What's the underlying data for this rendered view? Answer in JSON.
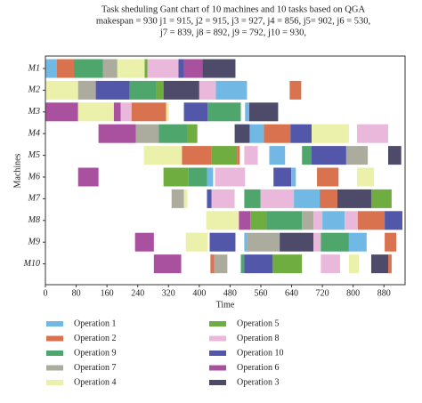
{
  "chart_data": {
    "type": "gantt",
    "title": [
      "Task sheduling Gant chart of 10 machines and 10 tasks based on QGA",
      "makespan = 930 j1 = 915, j2 = 915, j3 = 927, j4 = 856, j5= 902, j6 = 530,",
      "j7 = 839, j8 = 892, j9 = 792, j10 = 930,"
    ],
    "x_label": "Time",
    "y_label": "Machines",
    "xlim": [
      0,
      935
    ],
    "xticks": [
      0,
      80,
      160,
      240,
      320,
      400,
      480,
      560,
      640,
      720,
      800,
      880
    ],
    "operations": [
      {
        "name": "Operation 1",
        "color": "#72b8e4"
      },
      {
        "name": "Operation 2",
        "color": "#d9734f"
      },
      {
        "name": "Operation 9",
        "color": "#4ea66c"
      },
      {
        "name": "Operation 7",
        "color": "#abab9e"
      },
      {
        "name": "Operation 4",
        "color": "#ebf1ab"
      },
      {
        "name": "Operation 5",
        "color": "#70ad40"
      },
      {
        "name": "Operation 8",
        "color": "#e9b8da"
      },
      {
        "name": "Operation 10",
        "color": "#5257a9"
      },
      {
        "name": "Operation 6",
        "color": "#a9519f"
      },
      {
        "name": "Operation 3",
        "color": "#4e4b6a"
      }
    ],
    "machines": [
      {
        "name": "M1",
        "tasks": [
          [
            0,
            0,
            30
          ],
          [
            1,
            30,
            74
          ],
          [
            2,
            74,
            150
          ],
          [
            3,
            150,
            187
          ],
          [
            4,
            187,
            258
          ],
          [
            5,
            258,
            265
          ],
          [
            6,
            265,
            346
          ],
          [
            7,
            346,
            360
          ],
          [
            8,
            360,
            408
          ],
          [
            9,
            408,
            494
          ]
        ]
      },
      {
        "name": "M2",
        "tasks": [
          [
            4,
            0,
            85
          ],
          [
            3,
            85,
            131
          ],
          [
            7,
            131,
            219
          ],
          [
            2,
            219,
            288
          ],
          [
            5,
            288,
            307
          ],
          [
            9,
            307,
            400
          ],
          [
            6,
            400,
            443
          ],
          [
            0,
            443,
            524
          ],
          [
            1,
            635,
            665
          ]
        ]
      },
      {
        "name": "M3",
        "tasks": [
          [
            8,
            0,
            85
          ],
          [
            4,
            85,
            178
          ],
          [
            8,
            178,
            196
          ],
          [
            6,
            196,
            224
          ],
          [
            1,
            224,
            314
          ],
          [
            4,
            314,
            321
          ],
          [
            7,
            360,
            422
          ],
          [
            2,
            422,
            508
          ],
          [
            0,
            519,
            530
          ],
          [
            9,
            530,
            605
          ]
        ]
      },
      {
        "name": "M4",
        "tasks": [
          [
            8,
            138,
            235
          ],
          [
            3,
            235,
            295
          ],
          [
            2,
            295,
            369
          ],
          [
            5,
            369,
            395
          ],
          [
            9,
            492,
            531
          ],
          [
            0,
            531,
            568
          ],
          [
            1,
            568,
            637
          ],
          [
            7,
            637,
            692
          ],
          [
            4,
            692,
            789
          ],
          [
            6,
            810,
            891
          ]
        ]
      },
      {
        "name": "M5",
        "tasks": [
          [
            4,
            256,
            355
          ],
          [
            1,
            355,
            432
          ],
          [
            5,
            432,
            498
          ],
          [
            1,
            498,
            505
          ],
          [
            6,
            517,
            552
          ],
          [
            0,
            582,
            623
          ],
          [
            2,
            667,
            692
          ],
          [
            7,
            692,
            782
          ],
          [
            3,
            782,
            838
          ],
          [
            9,
            891,
            925
          ]
        ]
      },
      {
        "name": "M6",
        "tasks": [
          [
            8,
            85,
            138
          ],
          [
            5,
            307,
            372
          ],
          [
            2,
            372,
            420
          ],
          [
            0,
            420,
            436
          ],
          [
            6,
            441,
            519
          ],
          [
            7,
            593,
            639
          ],
          [
            0,
            639,
            651
          ],
          [
            1,
            706,
            762
          ],
          [
            4,
            810,
            854
          ]
        ]
      },
      {
        "name": "M7",
        "tasks": [
          [
            3,
            328,
            360
          ],
          [
            4,
            360,
            369
          ],
          [
            7,
            420,
            432
          ],
          [
            6,
            432,
            492
          ],
          [
            2,
            517,
            559
          ],
          [
            6,
            559,
            646
          ],
          [
            0,
            646,
            713
          ],
          [
            1,
            713,
            759
          ],
          [
            9,
            759,
            847
          ],
          [
            5,
            847,
            900
          ]
        ]
      },
      {
        "name": "M8",
        "tasks": [
          [
            4,
            418,
            503
          ],
          [
            8,
            503,
            533
          ],
          [
            5,
            533,
            575
          ],
          [
            2,
            575,
            667
          ],
          [
            3,
            667,
            697
          ],
          [
            6,
            697,
            720
          ],
          [
            0,
            720,
            778
          ],
          [
            6,
            778,
            812
          ],
          [
            1,
            812,
            882
          ],
          [
            7,
            882,
            928
          ]
        ]
      },
      {
        "name": "M9",
        "tasks": [
          [
            8,
            233,
            282
          ],
          [
            4,
            365,
            422
          ],
          [
            7,
            427,
            494
          ],
          [
            0,
            517,
            524
          ],
          [
            3,
            524,
            609
          ],
          [
            9,
            609,
            697
          ],
          [
            6,
            697,
            716
          ],
          [
            2,
            716,
            789
          ],
          [
            0,
            789,
            835
          ],
          [
            1,
            882,
            912
          ]
        ]
      },
      {
        "name": "M10",
        "tasks": [
          [
            8,
            282,
            353
          ],
          [
            1,
            429,
            439
          ],
          [
            3,
            439,
            473
          ],
          [
            2,
            508,
            517
          ],
          [
            7,
            517,
            591
          ],
          [
            5,
            591,
            667
          ],
          [
            6,
            716,
            766
          ],
          [
            4,
            789,
            815
          ],
          [
            9,
            847,
            891
          ],
          [
            1,
            891,
            900
          ]
        ]
      }
    ]
  }
}
